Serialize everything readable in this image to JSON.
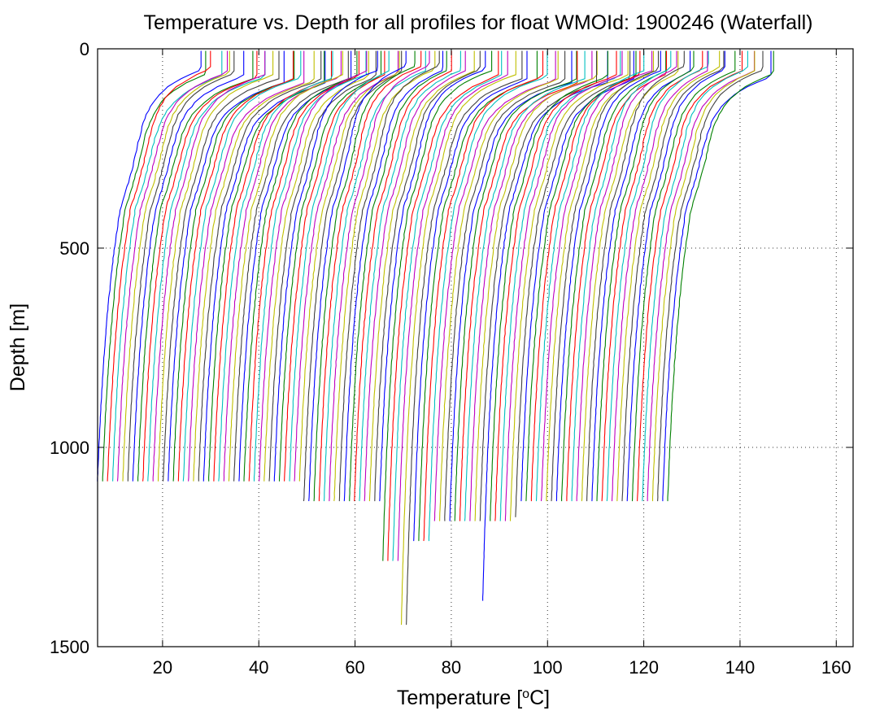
{
  "chart_data": {
    "type": "line",
    "title": "Temperature vs. Depth for all profiles for float WMOId: 1900246 (Waterfall)",
    "xlabel": "Temperature [",
    "xlabel_sup": "o",
    "xlabel_end": "C]",
    "ylabel": "Depth [m]",
    "xlim": [
      6.5,
      163.5
    ],
    "ylim": [
      0,
      1500
    ],
    "y_reversed": true,
    "grid": true,
    "xticks": [
      20,
      40,
      60,
      80,
      100,
      120,
      140,
      160
    ],
    "yticks": [
      0,
      500,
      1000,
      1500
    ],
    "xtick_labels": [
      "20",
      "40",
      "60",
      "80",
      "100",
      "120",
      "140",
      "160"
    ],
    "ytick_labels": [
      "0",
      "500",
      "1000",
      "1500"
    ],
    "profile_count": 114,
    "profile_offset_step": 1.05,
    "colors": [
      "#0000ff",
      "#008000",
      "#ff0000",
      "#00bfbf",
      "#bf00bf",
      "#bfbf00",
      "#404040"
    ],
    "profile_depth_groups": [
      {
        "count": 41,
        "max_depth": 1090
      },
      {
        "count": 1,
        "max_depth": 1140
      },
      {
        "count": 15,
        "max_depth": 1140
      },
      {
        "count": 4,
        "max_depth": 1290
      },
      {
        "count": 2,
        "max_depth": 1450
      },
      {
        "count": 4,
        "max_depth": 1240
      },
      {
        "count": 10,
        "max_depth": 1190
      },
      {
        "count": 1,
        "max_depth": 1390
      },
      {
        "count": 5,
        "max_depth": 1190
      },
      {
        "count": 1,
        "max_depth": 1180
      },
      {
        "count": 30,
        "max_depth": 1140
      }
    ]
  }
}
